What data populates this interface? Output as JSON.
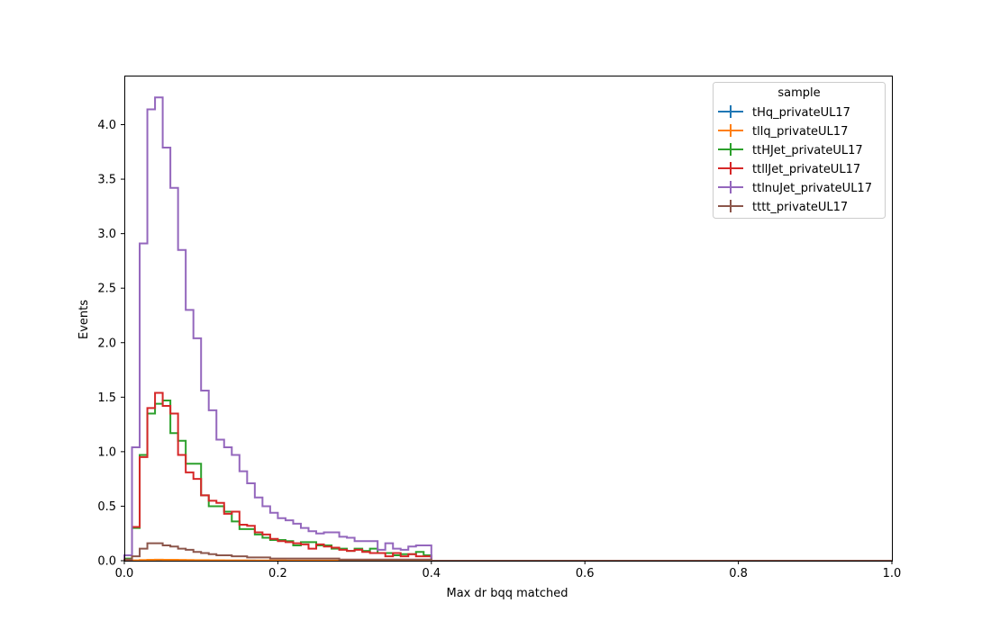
{
  "chart_data": {
    "type": "step",
    "xlabel": "Max dr bqq matched",
    "ylabel": "Events",
    "xlim": [
      0,
      1
    ],
    "ylim": [
      0,
      4.45
    ],
    "xticks": [
      0.0,
      0.2,
      0.4,
      0.6,
      0.8,
      1.0
    ],
    "xtick_labels": [
      "0.0",
      "0.2",
      "0.4",
      "0.6",
      "0.8",
      "1.0"
    ],
    "yticks": [
      0.0,
      0.5,
      1.0,
      1.5,
      2.0,
      2.5,
      3.0,
      3.5,
      4.0
    ],
    "ytick_labels": [
      "0.0",
      "0.5",
      "1.0",
      "1.5",
      "2.0",
      "2.5",
      "3.0",
      "3.5",
      "4.0"
    ],
    "grid": false,
    "legend_title": "sample",
    "legend_position": "top-right",
    "bin_edges_start": 0.0,
    "bin_width": 0.01,
    "series": [
      {
        "name": "tHq_privateUL17",
        "color": "#1f77b4",
        "values": [
          0.0,
          0.002,
          0.004,
          0.005,
          0.006,
          0.005,
          0.005,
          0.004,
          0.004,
          0.003,
          0.003,
          0.003,
          0.002,
          0.002,
          0.002,
          0.002,
          0.002,
          0.001,
          0.001,
          0.001,
          0.001,
          0.001,
          0.001,
          0.001,
          0.001,
          0.001,
          0.001,
          0.001,
          0.001,
          0.001,
          0.001,
          0.001,
          0.0,
          0.0,
          0.0,
          0.0,
          0.0,
          0.0,
          0.0,
          0.0
        ]
      },
      {
        "name": "tllq_privateUL17",
        "color": "#ff7f0e",
        "values": [
          0.0,
          0.003,
          0.006,
          0.008,
          0.009,
          0.008,
          0.008,
          0.007,
          0.006,
          0.005,
          0.005,
          0.004,
          0.004,
          0.003,
          0.003,
          0.003,
          0.002,
          0.002,
          0.002,
          0.002,
          0.002,
          0.001,
          0.001,
          0.001,
          0.001,
          0.001,
          0.001,
          0.001,
          0.001,
          0.001,
          0.001,
          0.001,
          0.001,
          0.0,
          0.0,
          0.0,
          0.0,
          0.0,
          0.0,
          0.0
        ]
      },
      {
        "name": "ttHJet_privateUL17",
        "color": "#2ca02c",
        "values": [
          0.02,
          0.3,
          0.97,
          1.35,
          1.44,
          1.47,
          1.17,
          1.1,
          0.89,
          0.89,
          0.6,
          0.5,
          0.5,
          0.45,
          0.36,
          0.29,
          0.29,
          0.24,
          0.21,
          0.19,
          0.19,
          0.18,
          0.14,
          0.17,
          0.17,
          0.14,
          0.14,
          0.11,
          0.11,
          0.09,
          0.11,
          0.09,
          0.11,
          0.07,
          0.07,
          0.05,
          0.06,
          0.06,
          0.08,
          0.05
        ]
      },
      {
        "name": "ttllJet_privateUL17",
        "color": "#d62728",
        "values": [
          0.01,
          0.31,
          0.95,
          1.4,
          1.54,
          1.42,
          1.35,
          0.97,
          0.81,
          0.75,
          0.6,
          0.55,
          0.53,
          0.43,
          0.45,
          0.33,
          0.32,
          0.26,
          0.24,
          0.2,
          0.18,
          0.17,
          0.16,
          0.15,
          0.11,
          0.15,
          0.13,
          0.12,
          0.1,
          0.09,
          0.1,
          0.08,
          0.07,
          0.07,
          0.04,
          0.07,
          0.04,
          0.06,
          0.04,
          0.04
        ]
      },
      {
        "name": "ttlnuJet_privateUL17",
        "color": "#9467bd",
        "values": [
          0.05,
          1.04,
          2.91,
          4.14,
          4.25,
          3.79,
          3.42,
          2.85,
          2.3,
          2.04,
          1.56,
          1.38,
          1.11,
          1.04,
          0.97,
          0.82,
          0.71,
          0.58,
          0.5,
          0.44,
          0.39,
          0.37,
          0.34,
          0.3,
          0.27,
          0.25,
          0.26,
          0.26,
          0.22,
          0.21,
          0.18,
          0.18,
          0.18,
          0.1,
          0.16,
          0.11,
          0.1,
          0.13,
          0.14,
          0.14
        ]
      },
      {
        "name": "tttt_privateUL17",
        "color": "#8c564b",
        "values": [
          0.01,
          0.04,
          0.11,
          0.16,
          0.16,
          0.14,
          0.13,
          0.11,
          0.1,
          0.08,
          0.07,
          0.06,
          0.05,
          0.05,
          0.04,
          0.04,
          0.03,
          0.03,
          0.03,
          0.02,
          0.02,
          0.02,
          0.02,
          0.02,
          0.02,
          0.02,
          0.02,
          0.02,
          0.01,
          0.01,
          0.01,
          0.01,
          0.01,
          0.01,
          0.01,
          0.01,
          0.01,
          0.01,
          0.01,
          0.01
        ]
      }
    ]
  }
}
